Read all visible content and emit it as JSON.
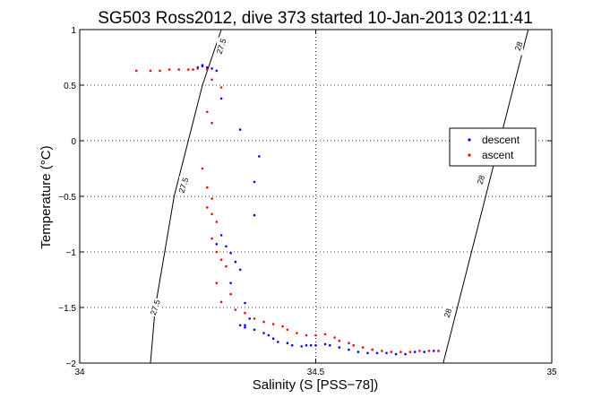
{
  "chart_data": {
    "type": "scatter",
    "title": "SG503 Ross2012, dive 373 started 10-Jan-2013 02:11:41",
    "xlabel": "Salinity (S [PSS−78])",
    "ylabel": "Temperature (°C)",
    "xlim": [
      34,
      35
    ],
    "ylim": [
      -2,
      1
    ],
    "xticks": [
      {
        "value": 34,
        "label": "34"
      },
      {
        "value": 34.5,
        "label": "34.5"
      },
      {
        "value": 35,
        "label": "35"
      }
    ],
    "yticks": [
      {
        "value": -2,
        "label": "−2"
      },
      {
        "value": -1.5,
        "label": "−1.5"
      },
      {
        "value": -1,
        "label": "−1"
      },
      {
        "value": -0.5,
        "label": "−0.5"
      },
      {
        "value": 0,
        "label": "0"
      },
      {
        "value": 0.5,
        "label": "0.5"
      },
      {
        "value": 1,
        "label": "1"
      }
    ],
    "grid": true,
    "legend_position": "right",
    "series": [
      {
        "name": "descent",
        "color": "#0000ff",
        "marker": "dot",
        "points": [
          [
            34.26,
            0.67
          ],
          [
            34.27,
            0.66
          ],
          [
            34.28,
            0.65
          ],
          [
            34.26,
            0.68
          ],
          [
            34.25,
            0.66
          ],
          [
            34.29,
            0.63
          ],
          [
            34.3,
            0.38
          ],
          [
            34.34,
            0.1
          ],
          [
            34.38,
            -0.14
          ],
          [
            34.37,
            -0.37
          ],
          [
            34.37,
            -0.67
          ],
          [
            34.3,
            -0.85
          ],
          [
            34.29,
            -0.93
          ],
          [
            34.31,
            -0.95
          ],
          [
            34.32,
            -1.01
          ],
          [
            34.33,
            -1.09
          ],
          [
            34.34,
            -1.16
          ],
          [
            34.32,
            -1.28
          ],
          [
            34.35,
            -1.46
          ],
          [
            34.36,
            -1.6
          ],
          [
            34.35,
            -1.66
          ],
          [
            34.34,
            -1.66
          ],
          [
            34.35,
            -1.68
          ],
          [
            34.37,
            -1.7
          ],
          [
            34.39,
            -1.73
          ],
          [
            34.4,
            -1.75
          ],
          [
            34.41,
            -1.78
          ],
          [
            34.42,
            -1.81
          ],
          [
            34.44,
            -1.82
          ],
          [
            34.45,
            -1.84
          ],
          [
            34.47,
            -1.85
          ],
          [
            34.48,
            -1.84
          ],
          [
            34.49,
            -1.84
          ],
          [
            34.5,
            -1.84
          ],
          [
            34.52,
            -1.83
          ],
          [
            34.53,
            -1.84
          ],
          [
            34.55,
            -1.86
          ],
          [
            34.57,
            -1.88
          ],
          [
            34.59,
            -1.9
          ],
          [
            34.61,
            -1.91
          ],
          [
            34.63,
            -1.91
          ],
          [
            34.65,
            -1.91
          ],
          [
            34.67,
            -1.92
          ],
          [
            34.69,
            -1.92
          ],
          [
            34.71,
            -1.9
          ],
          [
            34.73,
            -1.9
          ],
          [
            34.75,
            -1.89
          ],
          [
            34.76,
            -1.89
          ]
        ]
      },
      {
        "name": "ascent",
        "color": "#ff0000",
        "marker": "dot",
        "points": [
          [
            34.12,
            0.63
          ],
          [
            34.15,
            0.63
          ],
          [
            34.17,
            0.63
          ],
          [
            34.19,
            0.64
          ],
          [
            34.21,
            0.64
          ],
          [
            34.23,
            0.64
          ],
          [
            34.24,
            0.64
          ],
          [
            34.25,
            0.65
          ],
          [
            34.27,
            0.64
          ],
          [
            34.28,
            0.55
          ],
          [
            34.3,
            0.48
          ],
          [
            34.27,
            0.26
          ],
          [
            34.28,
            0.16
          ],
          [
            34.26,
            -0.25
          ],
          [
            34.27,
            -0.42
          ],
          [
            34.28,
            -0.52
          ],
          [
            34.27,
            -0.6
          ],
          [
            34.28,
            -0.66
          ],
          [
            34.29,
            -0.73
          ],
          [
            34.28,
            -0.88
          ],
          [
            34.29,
            -1.0
          ],
          [
            34.3,
            -1.07
          ],
          [
            34.31,
            -1.13
          ],
          [
            34.29,
            -1.28
          ],
          [
            34.32,
            -1.38
          ],
          [
            34.3,
            -1.45
          ],
          [
            34.33,
            -1.52
          ],
          [
            34.35,
            -1.55
          ],
          [
            34.37,
            -1.6
          ],
          [
            34.39,
            -1.63
          ],
          [
            34.41,
            -1.65
          ],
          [
            34.43,
            -1.67
          ],
          [
            34.44,
            -1.7
          ],
          [
            34.46,
            -1.73
          ],
          [
            34.48,
            -1.75
          ],
          [
            34.5,
            -1.75
          ],
          [
            34.52,
            -1.74
          ],
          [
            34.54,
            -1.77
          ],
          [
            34.55,
            -1.8
          ],
          [
            34.57,
            -1.82
          ],
          [
            34.58,
            -1.84
          ],
          [
            34.6,
            -1.86
          ],
          [
            34.62,
            -1.88
          ],
          [
            34.64,
            -1.89
          ],
          [
            34.66,
            -1.9
          ],
          [
            34.68,
            -1.9
          ],
          [
            34.7,
            -1.9
          ],
          [
            34.72,
            -1.89
          ],
          [
            34.74,
            -1.89
          ],
          [
            34.76,
            -1.89
          ]
        ]
      }
    ],
    "contours": [
      {
        "label": "27.5",
        "points": [
          [
            34.15,
            -2
          ],
          [
            34.16,
            -1.5
          ],
          [
            34.18,
            -1
          ],
          [
            34.2,
            -0.5
          ],
          [
            34.23,
            0
          ],
          [
            34.26,
            0.5
          ],
          [
            34.3,
            1
          ]
        ],
        "label_positions": [
          [
            34.16,
            -1.5
          ],
          [
            34.22,
            -0.4
          ],
          [
            34.3,
            0.85
          ]
        ]
      },
      {
        "label": "28",
        "points": [
          [
            34.77,
            -2
          ],
          [
            34.8,
            -1.5
          ],
          [
            34.83,
            -1
          ],
          [
            34.86,
            -0.5
          ],
          [
            34.89,
            0
          ],
          [
            34.92,
            0.5
          ],
          [
            34.95,
            1
          ]
        ],
        "label_positions": [
          [
            34.78,
            -1.55
          ],
          [
            34.85,
            -0.35
          ],
          [
            34.93,
            0.85
          ]
        ]
      }
    ]
  }
}
